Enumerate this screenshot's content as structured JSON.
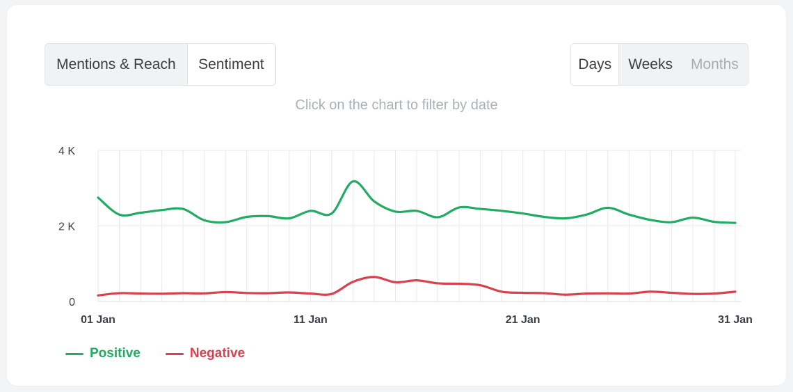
{
  "tabs_left": {
    "mentions_label": "Mentions & Reach",
    "sentiment_label": "Sentiment",
    "active": "Sentiment"
  },
  "tabs_right": {
    "days_label": "Days",
    "weeks_label": "Weeks",
    "months_label": "Months",
    "active": "Days"
  },
  "hint_text": "Click on the chart to filter by date",
  "colors": {
    "positive": "#22ab62",
    "negative": "#d6424f",
    "grid": "#e6e8eb"
  },
  "chart_data": {
    "type": "line",
    "title": "",
    "xlabel": "",
    "ylabel": "",
    "x": [
      "01 Jan",
      "02 Jan",
      "03 Jan",
      "04 Jan",
      "05 Jan",
      "06 Jan",
      "07 Jan",
      "08 Jan",
      "09 Jan",
      "10 Jan",
      "11 Jan",
      "12 Jan",
      "13 Jan",
      "14 Jan",
      "15 Jan",
      "16 Jan",
      "17 Jan",
      "18 Jan",
      "19 Jan",
      "20 Jan",
      "21 Jan",
      "22 Jan",
      "23 Jan",
      "24 Jan",
      "25 Jan",
      "26 Jan",
      "27 Jan",
      "28 Jan",
      "29 Jan",
      "30 Jan",
      "31 Jan"
    ],
    "x_tick_labels": [
      "01 Jan",
      "11 Jan",
      "21 Jan",
      "31 Jan"
    ],
    "y_tick_labels": [
      "0",
      "2 K",
      "4 K"
    ],
    "y_ticks": [
      0,
      2000,
      4000
    ],
    "ylim": [
      0,
      4000
    ],
    "grid": true,
    "legend_position": "bottom-left",
    "series": [
      {
        "name": "Positive",
        "values": [
          2750,
          2300,
          2350,
          2420,
          2450,
          2150,
          2100,
          2240,
          2260,
          2200,
          2400,
          2330,
          3180,
          2650,
          2380,
          2400,
          2230,
          2490,
          2450,
          2400,
          2330,
          2240,
          2200,
          2300,
          2480,
          2300,
          2160,
          2100,
          2220,
          2110,
          2080
        ]
      },
      {
        "name": "Negative",
        "values": [
          160,
          220,
          210,
          205,
          220,
          215,
          250,
          225,
          220,
          240,
          210,
          200,
          520,
          650,
          510,
          560,
          480,
          470,
          430,
          260,
          230,
          220,
          180,
          210,
          215,
          210,
          260,
          230,
          200,
          210,
          260
        ]
      }
    ]
  }
}
